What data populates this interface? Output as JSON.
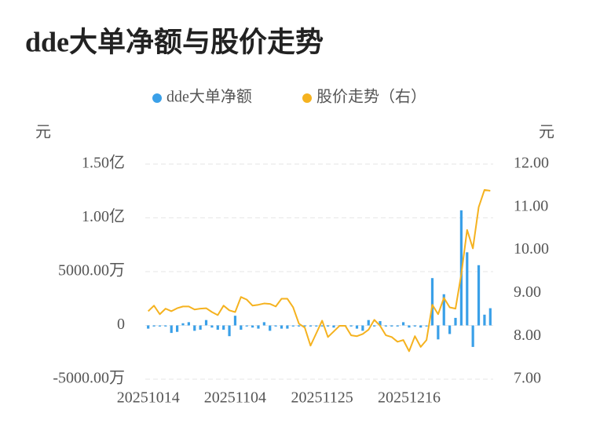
{
  "chart_data": {
    "type": "bar-line",
    "title": "dde大单净额与股价走势",
    "ylabel": "元",
    "y2label": "元",
    "categories": [
      "20251014",
      null,
      null,
      null,
      null,
      null,
      null,
      null,
      null,
      null,
      null,
      null,
      null,
      null,
      null,
      "20251104",
      null,
      null,
      null,
      null,
      null,
      null,
      null,
      null,
      null,
      null,
      null,
      null,
      null,
      null,
      "20251125",
      null,
      null,
      null,
      null,
      null,
      null,
      null,
      null,
      null,
      null,
      null,
      null,
      null,
      null,
      "20251216",
      null,
      null,
      null,
      null,
      null,
      null,
      null,
      null,
      null,
      null,
      null,
      null,
      null,
      null
    ],
    "series": [
      {
        "name": "dde大单净额",
        "type": "bar",
        "color": "#3aa0e8",
        "values": [
          -3000000,
          -1000000,
          -1000000,
          -1000000,
          -7000000,
          -6000000,
          2000000,
          3000000,
          -5000000,
          -4000000,
          5000000,
          -2000000,
          -4000000,
          -4000000,
          -10000000,
          9000000,
          -4000000,
          -1000000,
          -2000000,
          -3000000,
          3000000,
          -5000000,
          -1000000,
          -3000000,
          -3000000,
          -1000000,
          -1000000,
          -1000000,
          -1000000,
          -1000000,
          -1000000,
          -1000000,
          -2000000,
          -1000000,
          -1000000,
          -1000000,
          -3000000,
          -5000000,
          5000000,
          -1000000,
          4000000,
          -1000000,
          -1000000,
          -1000000,
          3000000,
          -2000000,
          -1000000,
          -2000000,
          -1000000,
          44000000,
          -13000000,
          29000000,
          -8000000,
          7000000,
          107000000,
          68000000,
          -20000000,
          56000000,
          10000000,
          16000000
        ]
      },
      {
        "name": "股价走势（右）",
        "type": "line",
        "axis": "y2",
        "color": "#f5b21f",
        "values": [
          8.58,
          8.71,
          8.51,
          8.64,
          8.58,
          8.65,
          8.69,
          8.69,
          8.62,
          8.64,
          8.65,
          8.56,
          8.49,
          8.71,
          8.6,
          8.56,
          8.91,
          8.85,
          8.71,
          8.73,
          8.76,
          8.75,
          8.69,
          8.87,
          8.87,
          8.67,
          8.29,
          8.2,
          7.78,
          8.07,
          8.36,
          7.98,
          8.11,
          8.24,
          8.24,
          8.02,
          8.0,
          8.05,
          8.15,
          8.38,
          8.24,
          8.02,
          7.98,
          7.87,
          7.91,
          7.65,
          8.0,
          7.75,
          7.91,
          8.73,
          8.51,
          8.89,
          8.67,
          8.64,
          9.44,
          10.47,
          10.04,
          11.0,
          11.4,
          11.38
        ]
      }
    ],
    "ylim": [
      -50000000,
      150000000
    ],
    "yticks": [
      {
        "value": -50000000,
        "label": "-5000.00万"
      },
      0,
      {
        "value": 50000000,
        "label": "5000.00万"
      },
      {
        "value": 100000000,
        "label": "1.00亿"
      },
      {
        "value": 150000000,
        "label": "1.50亿"
      }
    ],
    "y2lim": [
      7,
      12
    ],
    "y2ticks": [
      {
        "value": 7,
        "label": "7.00"
      },
      {
        "value": 8,
        "label": "8.00"
      },
      {
        "value": 9,
        "label": "9.00"
      },
      {
        "value": 10,
        "label": "10.00"
      },
      {
        "value": 11,
        "label": "11.00"
      },
      {
        "value": 12,
        "label": "12.00"
      }
    ],
    "grid": true,
    "legend": "top"
  }
}
